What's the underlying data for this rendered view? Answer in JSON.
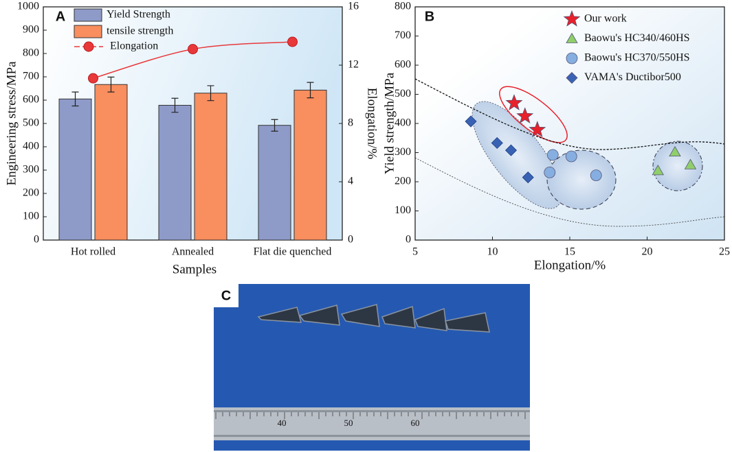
{
  "chart_data": [
    {
      "type": "bar",
      "panel_label": "A",
      "categories": [
        "Hot rolled",
        "Annealed",
        "Flat die quenched"
      ],
      "xlabel": "Samples",
      "ylabel": "Engineering stress/MPa",
      "y2label": "Elongation/%",
      "ylim": [
        0,
        1000
      ],
      "yticks": [
        0,
        100,
        200,
        300,
        400,
        500,
        600,
        700,
        800,
        900,
        1000
      ],
      "y2lim": [
        0,
        16
      ],
      "y2ticks": [
        0,
        4,
        8,
        12,
        16
      ],
      "series": [
        {
          "name": "Yield Strength",
          "color": "#8e9bc9",
          "values": [
            605,
            578,
            492
          ],
          "errors": [
            30,
            30,
            25
          ]
        },
        {
          "name": "tensile strength",
          "color": "#f98e5e",
          "values": [
            667,
            630,
            643
          ],
          "errors": [
            32,
            32,
            33
          ]
        },
        {
          "name": "Elongation",
          "color": "#e8383a",
          "axis": "y2",
          "values": [
            11.1,
            13.1,
            13.6
          ]
        }
      ]
    },
    {
      "type": "scatter",
      "panel_label": "B",
      "xlabel": "Elongation/%",
      "ylabel": "Yield strength/MPa",
      "xlim": [
        5,
        25
      ],
      "xticks": [
        5,
        10,
        15,
        20,
        25
      ],
      "ylim": [
        0,
        800
      ],
      "yticks": [
        0,
        100,
        200,
        300,
        400,
        500,
        600,
        700,
        800
      ],
      "series": [
        {
          "name": "Our work",
          "color": "#e8202a",
          "marker": "star",
          "x": [
            11.4,
            12.1,
            12.9
          ],
          "values": [
            470,
            425,
            378
          ]
        },
        {
          "name": "Baowu's HC340/460HS",
          "color": "#8fce6a",
          "marker": "triangle",
          "x": [
            20.7,
            21.8,
            22.8
          ],
          "values": [
            238,
            302,
            258
          ]
        },
        {
          "name": "Baowu's HC370/550HS",
          "color": "#86aee0",
          "marker": "circle",
          "x": [
            13.7,
            13.9,
            15.1,
            16.7
          ],
          "values": [
            232,
            292,
            287,
            222
          ]
        },
        {
          "name": "VAMA's Ductibor500",
          "color": "#3a62b4",
          "marker": "diamond",
          "x": [
            8.6,
            10.3,
            11.2,
            12.3
          ],
          "values": [
            407,
            333,
            308,
            215
          ]
        }
      ]
    }
  ],
  "photo": {
    "label": "C",
    "ruler_labels": [
      "40",
      "50",
      "60"
    ]
  }
}
